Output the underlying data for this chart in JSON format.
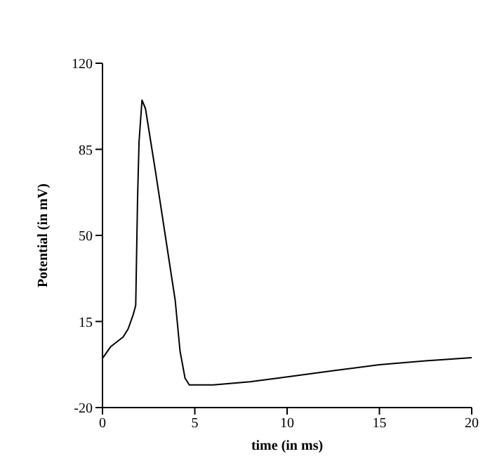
{
  "chart_data": {
    "type": "line",
    "xlabel": "time (in ms)",
    "ylabel": "Potential (in mV)",
    "x": [
      0,
      0.45,
      1.12,
      1.39,
      1.66,
      1.8,
      1.9,
      1.98,
      2.14,
      2.33,
      2.87,
      3.4,
      3.94,
      4.2,
      4.47,
      4.7,
      6,
      8,
      10.1,
      12.5,
      15,
      17.5,
      20
    ],
    "series": [
      {
        "color": "#000000",
        "values": [
          0,
          4.8,
          8.7,
          12,
          17.7,
          21.6,
          65,
          88,
          105,
          101.5,
          76,
          50,
          23.5,
          3,
          -8,
          -10.8,
          -10.8,
          -9.5,
          -7.4,
          -5,
          -2.6,
          -1,
          0.3
        ]
      }
    ],
    "xlim": [
      0,
      20
    ],
    "xticks": [
      0,
      5,
      10,
      15,
      20
    ],
    "ylim": [
      -20,
      120
    ],
    "yticks": [
      -20,
      15,
      50,
      85,
      120
    ],
    "grid": false,
    "legend": false,
    "marker": "none",
    "line_style": "solid"
  }
}
